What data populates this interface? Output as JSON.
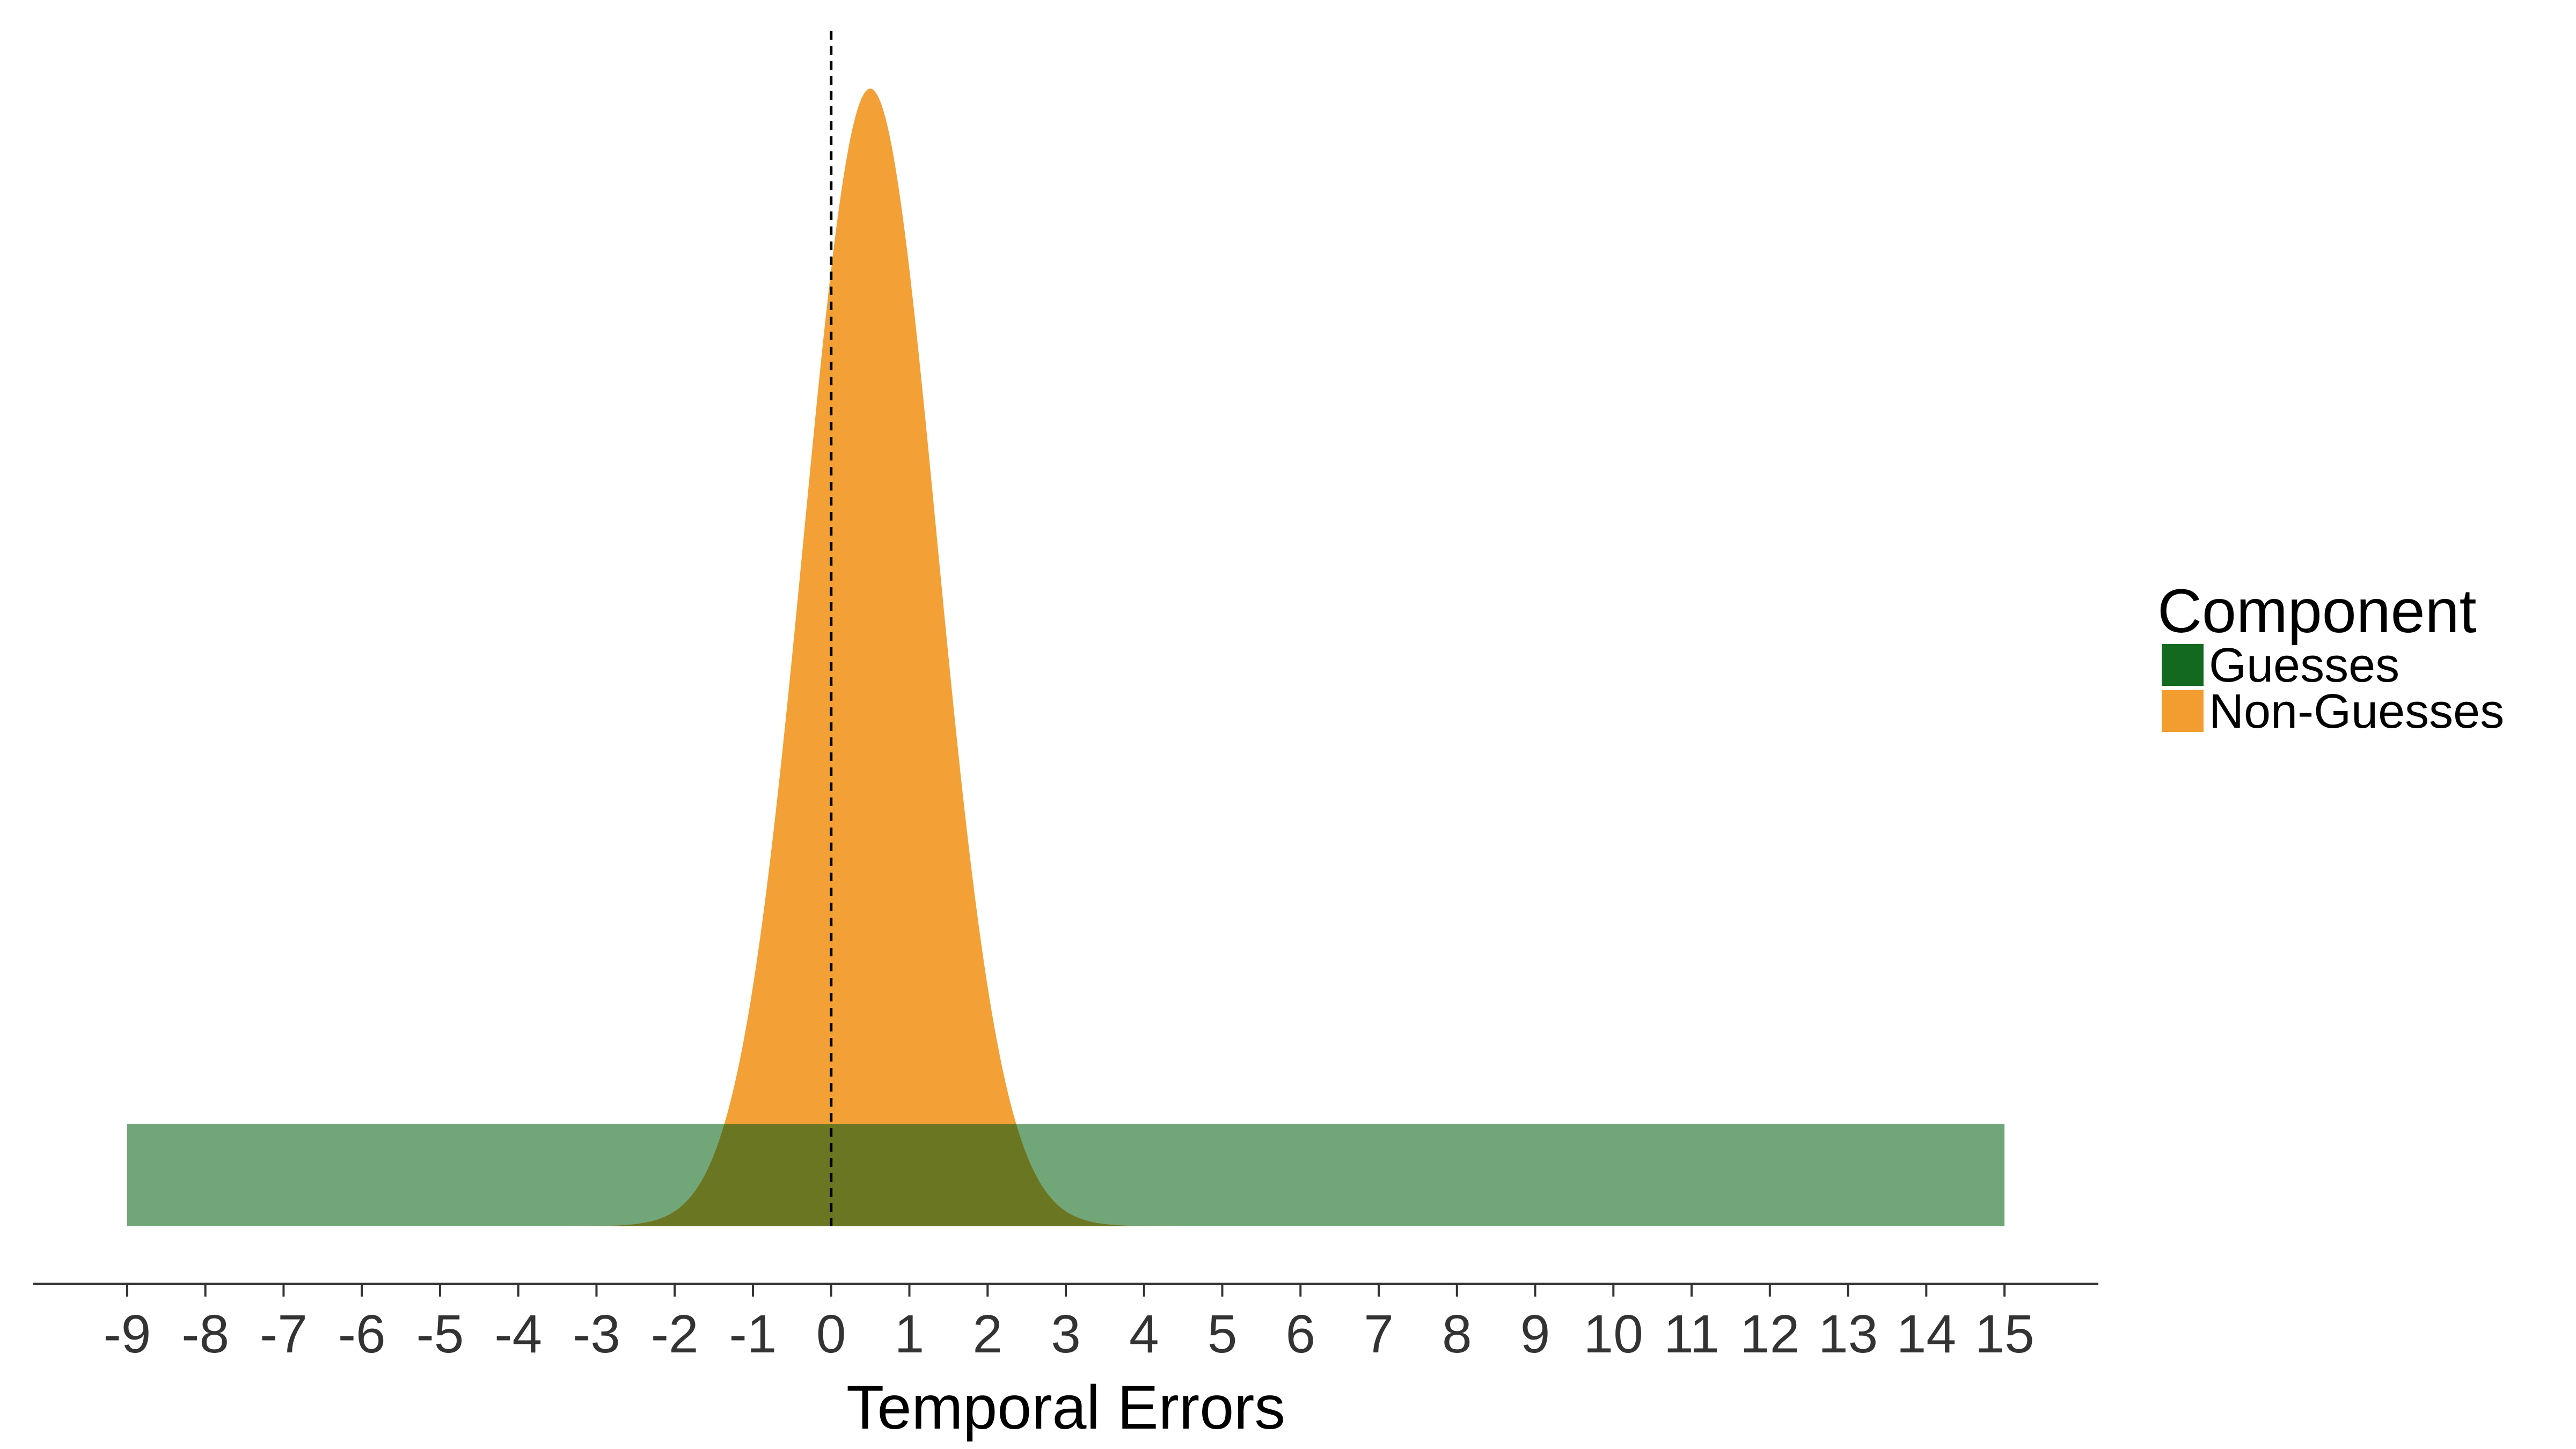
{
  "chart_data": {
    "type": "area",
    "title": "",
    "xlabel": "Temporal Errors",
    "ylabel": "",
    "xlim": [
      -10.2,
      16.2
    ],
    "x_ticks": [
      -9,
      -8,
      -7,
      -6,
      -5,
      -4,
      -3,
      -2,
      -1,
      0,
      1,
      2,
      3,
      4,
      5,
      6,
      7,
      8,
      9,
      10,
      11,
      12,
      13,
      14,
      15
    ],
    "reference_line": {
      "x": 0,
      "style": "dashed",
      "color": "#000000"
    },
    "grid": false,
    "legend": {
      "title": "Component",
      "placement": "right",
      "entries": [
        {
          "label": "Guesses",
          "color": "#136a1f"
        },
        {
          "label": "Non-Guesses",
          "color": "#f39d31"
        }
      ]
    },
    "series": [
      {
        "name": "Guesses",
        "kind": "uniform",
        "x_range": [
          -9,
          15
        ],
        "relative_height": 0.09,
        "color": "#136a1f",
        "opacity": 0.6
      },
      {
        "name": "Non-Guesses",
        "kind": "normal",
        "mean": 0.5,
        "sd": 0.85,
        "relative_height": 1.0,
        "color": "#f39d31",
        "opacity": 0.97
      }
    ]
  }
}
